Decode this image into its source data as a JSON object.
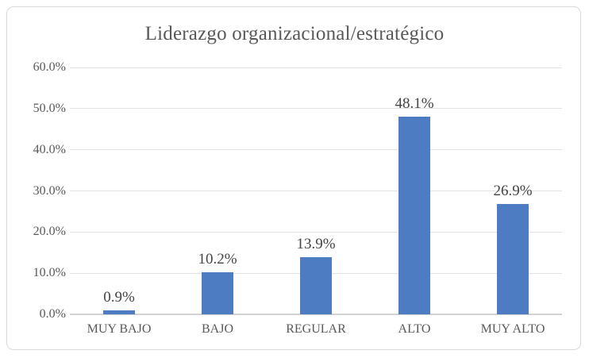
{
  "chart_data": {
    "type": "bar",
    "title": "Liderazgo organizacional/estratégico",
    "categories": [
      "MUY BAJO",
      "BAJO",
      "REGULAR",
      "ALTO",
      "MUY ALTO"
    ],
    "values": [
      0.9,
      10.2,
      13.9,
      48.1,
      26.9
    ],
    "value_labels": [
      "0.9%",
      "10.2%",
      "13.9%",
      "48.1%",
      "26.9%"
    ],
    "y_tick_labels": [
      "0.0%",
      "10.0%",
      "20.0%",
      "30.0%",
      "40.0%",
      "50.0%",
      "60.0%"
    ],
    "y_tick_values": [
      0,
      10,
      20,
      30,
      40,
      50,
      60
    ],
    "ylim": [
      0,
      60
    ],
    "xlabel": "",
    "ylabel": "",
    "grid": true,
    "legend": false,
    "colors": {
      "bar": "#4E7CC3",
      "gridline": "#E3E3E3",
      "axis_line": "#D2D2D2",
      "title_text": "#595959",
      "tick_text": "#595959",
      "value_text": "#444444",
      "frame_border": "#D9D9D9",
      "background": "#FFFFFF"
    }
  }
}
